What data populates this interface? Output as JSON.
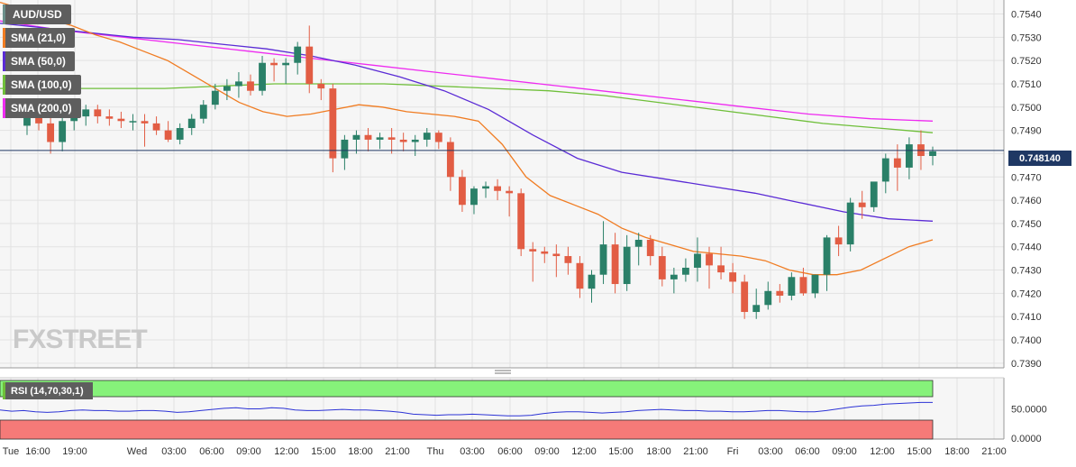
{
  "chart_data": {
    "type": "candlestick",
    "symbol": "AUD/USD",
    "indicators": [
      {
        "name": "SMA (21,0)",
        "color": "#f07c22"
      },
      {
        "name": "SMA (50,0)",
        "color": "#5a2bd5"
      },
      {
        "name": "SMA (100,0)",
        "color": "#6fbf3a"
      },
      {
        "name": "SMA (200,0)",
        "color": "#ee2bf0"
      }
    ],
    "last_price": "0.748140",
    "y_ticks": [
      "0.7540",
      "0.7530",
      "0.7520",
      "0.7510",
      "0.7500",
      "0.7490",
      "0.7480",
      "0.7470",
      "0.7460",
      "0.7450",
      "0.7440",
      "0.7430",
      "0.7420",
      "0.7410",
      "0.7400",
      "0.7390"
    ],
    "ylim": [
      0.7388,
      0.7546
    ],
    "x_ticks": [
      "Tue",
      "16:00",
      "19:00",
      "Wed",
      "03:00",
      "06:00",
      "09:00",
      "12:00",
      "15:00",
      "18:00",
      "21:00",
      "Thu",
      "03:00",
      "06:00",
      "09:00",
      "12:00",
      "15:00",
      "18:00",
      "21:00",
      "Fri",
      "03:00",
      "06:00",
      "09:00",
      "12:00",
      "15:00",
      "18:00",
      "21:00"
    ],
    "rsi": {
      "label": "RSI (14,70,30,1)",
      "y_ticks": [
        "50.0000",
        "0.0000"
      ],
      "series": [
        48,
        46,
        47,
        45,
        44,
        45,
        47,
        48,
        47,
        47,
        46,
        46,
        47,
        47,
        46,
        44,
        45,
        47,
        49,
        51,
        52,
        50,
        50,
        52,
        51,
        48,
        47,
        47,
        48,
        49,
        48,
        48,
        47,
        46,
        44,
        41,
        40,
        39,
        40,
        40,
        41,
        40,
        39,
        38,
        38,
        39,
        42,
        44,
        45,
        45,
        44,
        43,
        44,
        45,
        47,
        48,
        49,
        48,
        47,
        47,
        46,
        46,
        45,
        45,
        46,
        47,
        47,
        46,
        45,
        45,
        47,
        50,
        53,
        55,
        56,
        58,
        59,
        60,
        61,
        61
      ]
    },
    "candles": [
      [
        0.7492,
        0.75,
        0.7488,
        0.7497
      ],
      [
        0.7497,
        0.7502,
        0.749,
        0.7493
      ],
      [
        0.7493,
        0.7498,
        0.748,
        0.7485
      ],
      [
        0.7485,
        0.7496,
        0.7481,
        0.7494
      ],
      [
        0.7494,
        0.7499,
        0.749,
        0.7496
      ],
      [
        0.7496,
        0.7501,
        0.7492,
        0.7499
      ],
      [
        0.7499,
        0.7501,
        0.7493,
        0.7496
      ],
      [
        0.7496,
        0.7499,
        0.7492,
        0.7495
      ],
      [
        0.7495,
        0.7498,
        0.7491,
        0.7494
      ],
      [
        0.7494,
        0.7497,
        0.749,
        0.7494
      ],
      [
        0.7494,
        0.7497,
        0.7483,
        0.7493
      ],
      [
        0.7493,
        0.7496,
        0.7488,
        0.749
      ],
      [
        0.749,
        0.7494,
        0.7485,
        0.7486
      ],
      [
        0.7486,
        0.7493,
        0.7484,
        0.7491
      ],
      [
        0.7491,
        0.7497,
        0.7488,
        0.7495
      ],
      [
        0.7495,
        0.7503,
        0.7493,
        0.7501
      ],
      [
        0.7501,
        0.751,
        0.7499,
        0.7507
      ],
      [
        0.7507,
        0.7512,
        0.7503,
        0.7509
      ],
      [
        0.7509,
        0.7515,
        0.7504,
        0.7511
      ],
      [
        0.7511,
        0.7514,
        0.7505,
        0.7507
      ],
      [
        0.7507,
        0.7522,
        0.7505,
        0.7519
      ],
      [
        0.7519,
        0.7521,
        0.7511,
        0.7518
      ],
      [
        0.7518,
        0.7521,
        0.751,
        0.7519
      ],
      [
        0.7519,
        0.7528,
        0.7514,
        0.7526
      ],
      [
        0.7526,
        0.7535,
        0.7506,
        0.751
      ],
      [
        0.751,
        0.7512,
        0.7503,
        0.7508
      ],
      [
        0.7508,
        0.751,
        0.7472,
        0.7478
      ],
      [
        0.7478,
        0.7488,
        0.7473,
        0.7486
      ],
      [
        0.7486,
        0.749,
        0.748,
        0.7488
      ],
      [
        0.7488,
        0.7491,
        0.7481,
        0.7486
      ],
      [
        0.7486,
        0.7489,
        0.7482,
        0.7487
      ],
      [
        0.7487,
        0.7491,
        0.748,
        0.7486
      ],
      [
        0.7486,
        0.7489,
        0.7481,
        0.7485
      ],
      [
        0.7485,
        0.7488,
        0.7479,
        0.7486
      ],
      [
        0.7486,
        0.7491,
        0.7483,
        0.7489
      ],
      [
        0.7489,
        0.749,
        0.7482,
        0.7485
      ],
      [
        0.7485,
        0.7487,
        0.7464,
        0.747
      ],
      [
        0.747,
        0.7473,
        0.7455,
        0.7458
      ],
      [
        0.7458,
        0.7466,
        0.7454,
        0.7465
      ],
      [
        0.7465,
        0.7468,
        0.7461,
        0.7466
      ],
      [
        0.7466,
        0.7469,
        0.746,
        0.7464
      ],
      [
        0.7464,
        0.7466,
        0.7453,
        0.7463
      ],
      [
        0.7463,
        0.7465,
        0.7436,
        0.7439
      ],
      [
        0.7439,
        0.7442,
        0.7425,
        0.7438
      ],
      [
        0.7438,
        0.744,
        0.7433,
        0.7437
      ],
      [
        0.7437,
        0.7441,
        0.7427,
        0.7436
      ],
      [
        0.7436,
        0.744,
        0.7428,
        0.7433
      ],
      [
        0.7433,
        0.7436,
        0.7418,
        0.7422
      ],
      [
        0.7422,
        0.743,
        0.7416,
        0.7428
      ],
      [
        0.7428,
        0.7451,
        0.7424,
        0.7441
      ],
      [
        0.7441,
        0.7446,
        0.742,
        0.7424
      ],
      [
        0.7424,
        0.7445,
        0.7421,
        0.744
      ],
      [
        0.744,
        0.7446,
        0.7432,
        0.7443
      ],
      [
        0.7443,
        0.7445,
        0.7432,
        0.7436
      ],
      [
        0.7436,
        0.744,
        0.7423,
        0.7426
      ],
      [
        0.7426,
        0.7431,
        0.742,
        0.7428
      ],
      [
        0.7428,
        0.7435,
        0.7425,
        0.7431
      ],
      [
        0.7431,
        0.7444,
        0.7425,
        0.7437
      ],
      [
        0.7437,
        0.744,
        0.7422,
        0.7432
      ],
      [
        0.7432,
        0.744,
        0.7426,
        0.7429
      ],
      [
        0.7429,
        0.7433,
        0.742,
        0.7425
      ],
      [
        0.7425,
        0.7428,
        0.7409,
        0.7412
      ],
      [
        0.7412,
        0.7422,
        0.7409,
        0.7415
      ],
      [
        0.7415,
        0.7425,
        0.7413,
        0.7421
      ],
      [
        0.7421,
        0.7424,
        0.7416,
        0.7419
      ],
      [
        0.7419,
        0.7429,
        0.7417,
        0.7427
      ],
      [
        0.7427,
        0.7431,
        0.7419,
        0.742
      ],
      [
        0.742,
        0.7428,
        0.7418,
        0.7428
      ],
      [
        0.7428,
        0.7445,
        0.7421,
        0.7444
      ],
      [
        0.7444,
        0.7449,
        0.7436,
        0.7441
      ],
      [
        0.7441,
        0.7461,
        0.7438,
        0.7459
      ],
      [
        0.7459,
        0.7464,
        0.7452,
        0.7457
      ],
      [
        0.7457,
        0.7467,
        0.7455,
        0.7468
      ],
      [
        0.7468,
        0.748,
        0.7463,
        0.7478
      ],
      [
        0.7478,
        0.7484,
        0.7464,
        0.7474
      ],
      [
        0.7474,
        0.7487,
        0.7469,
        0.7484
      ],
      [
        0.7484,
        0.749,
        0.7473,
        0.7479
      ],
      [
        0.7479,
        0.7483,
        0.7475,
        0.7481
      ]
    ],
    "sma_21": [
      0.7545,
      0.7542,
      0.7538,
      0.7535,
      0.7531,
      0.7528,
      0.7524,
      0.752,
      0.7514,
      0.7508,
      0.7502,
      0.7498,
      0.7496,
      0.7497,
      0.7499,
      0.7501,
      0.75,
      0.7498,
      0.7497,
      0.7496,
      0.7494,
      0.7484,
      0.747,
      0.7462,
      0.7458,
      0.7454,
      0.7448,
      0.7444,
      0.7441,
      0.7438,
      0.7437,
      0.7436,
      0.7434,
      0.743,
      0.7428,
      0.7428,
      0.743,
      0.7435,
      0.744,
      0.7443
    ],
    "sma_50": [
      0.7536,
      0.7534,
      0.7532,
      0.753,
      0.7529,
      0.7527,
      0.7525,
      0.7522,
      0.7518,
      0.7513,
      0.7507,
      0.7499,
      0.7488,
      0.7478,
      0.7472,
      0.7469,
      0.7466,
      0.7463,
      0.7459,
      0.7455,
      0.7452,
      0.7451
    ],
    "sma_100": [
      0.7508,
      0.7508,
      0.7508,
      0.7508,
      0.7509,
      0.751,
      0.751,
      0.751,
      0.7509,
      0.7508,
      0.7507,
      0.7505,
      0.7502,
      0.7499,
      0.7496,
      0.7493,
      0.7491,
      0.7489
    ],
    "sma_200": [
      0.7537,
      0.7533,
      0.753,
      0.7527,
      0.7524,
      0.7521,
      0.7518,
      0.7515,
      0.7512,
      0.7509,
      0.7506,
      0.7503,
      0.75,
      0.7497,
      0.7495,
      0.7494
    ]
  },
  "watermark": "FXSTREET"
}
